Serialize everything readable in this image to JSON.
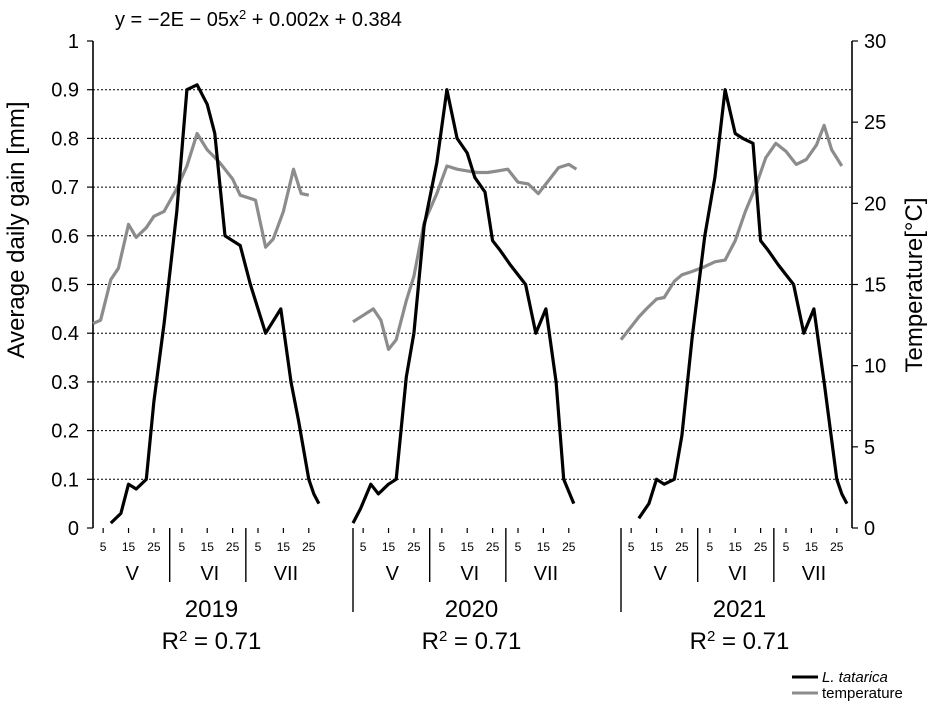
{
  "chart_data": {
    "type": "line",
    "equation": "y = −2E − 05x",
    "equation_exp": "2",
    "equation_rest": " + 0.002x + 0.384",
    "ylabel_left": "Average daily gain [mm]",
    "ylabel_right": "Temperature[°C]",
    "ylim_left": [
      0,
      1
    ],
    "ylim_right": [
      0,
      30
    ],
    "yticks_left": [
      "0",
      "0.1",
      "0.2",
      "0.3",
      "0.4",
      "0.5",
      "0.6",
      "0.7",
      "0.8",
      "0.9",
      "1"
    ],
    "yticks_right": [
      "0",
      "5",
      "10",
      "15",
      "20",
      "25",
      "30"
    ],
    "grid": "horizontal dotted",
    "day_ticks": [
      "5",
      "15",
      "25"
    ],
    "months": [
      "V",
      "VI",
      "VII"
    ],
    "x_unit": "day index from 1 May (May 1 = 1 … Jul 31 = 92)",
    "years": [
      {
        "year": "2019",
        "r2_base": "R",
        "r2_exp": "2",
        "r2_rest": " = 0.71",
        "gain": {
          "x": [
            8,
            12,
            15,
            18,
            22,
            25,
            29,
            34,
            38,
            42,
            46,
            49,
            53,
            56,
            59,
            63,
            69,
            75,
            79,
            82,
            86,
            88,
            90
          ],
          "y": [
            0.01,
            0.03,
            0.09,
            0.08,
            0.1,
            0.26,
            0.42,
            0.65,
            0.9,
            0.91,
            0.87,
            0.81,
            0.6,
            0.59,
            0.58,
            0.5,
            0.4,
            0.45,
            0.3,
            0.22,
            0.1,
            0.07,
            0.05
          ]
        },
        "temperature": {
          "x": [
            1,
            4,
            8,
            11,
            15,
            18,
            22,
            25,
            29,
            34,
            38,
            42,
            46,
            51,
            56,
            59,
            65,
            69,
            72,
            76,
            80,
            83,
            86
          ],
          "y": [
            12.6,
            12.8,
            15.3,
            16.0,
            18.7,
            17.9,
            18.5,
            19.2,
            19.5,
            20.9,
            22.3,
            24.3,
            23.3,
            22.5,
            21.5,
            20.5,
            20.2,
            17.3,
            17.8,
            19.5,
            22.1,
            20.6,
            20.5
          ]
        }
      },
      {
        "year": "2020",
        "r2_base": "R",
        "r2_exp": "2",
        "r2_rest": " = 0.71",
        "gain": {
          "x": [
            1,
            4,
            8,
            11,
            15,
            18,
            22,
            25,
            29,
            34,
            38,
            42,
            46,
            49,
            53,
            56,
            59,
            63,
            69,
            73,
            77,
            81,
            84,
            88
          ],
          "y": [
            0.01,
            0.04,
            0.09,
            0.07,
            0.09,
            0.1,
            0.31,
            0.4,
            0.62,
            0.75,
            0.9,
            0.8,
            0.77,
            0.72,
            0.69,
            0.59,
            0.57,
            0.54,
            0.5,
            0.4,
            0.45,
            0.3,
            0.1,
            0.05
          ]
        },
        "temperature": {
          "x": [
            1,
            5,
            9,
            12,
            15,
            18,
            22,
            25,
            29,
            34,
            38,
            42,
            46,
            50,
            54,
            58,
            62,
            66,
            70,
            74,
            78,
            82,
            86,
            89
          ],
          "y": [
            12.7,
            13.1,
            13.5,
            12.8,
            11.0,
            11.6,
            14.0,
            15.5,
            18.8,
            20.6,
            22.3,
            22.1,
            22.0,
            21.9,
            21.9,
            22.0,
            22.1,
            21.3,
            21.2,
            20.6,
            21.4,
            22.2,
            22.4,
            22.1
          ]
        }
      },
      {
        "year": "2021",
        "r2_base": "R",
        "r2_exp": "2",
        "r2_rest": " = 0.71",
        "gain": {
          "x": [
            8,
            12,
            15,
            18,
            22,
            25,
            29,
            34,
            38,
            42,
            46,
            49,
            53,
            56,
            59,
            63,
            69,
            73,
            77,
            81,
            86,
            88,
            90
          ],
          "y": [
            0.02,
            0.05,
            0.1,
            0.09,
            0.1,
            0.19,
            0.39,
            0.6,
            0.72,
            0.9,
            0.81,
            0.8,
            0.79,
            0.59,
            0.57,
            0.54,
            0.5,
            0.4,
            0.45,
            0.3,
            0.1,
            0.07,
            0.05
          ]
        },
        "temperature": {
          "x": [
            1,
            4,
            8,
            11,
            15,
            18,
            22,
            25,
            29,
            34,
            38,
            42,
            46,
            50,
            54,
            58,
            62,
            66,
            70,
            74,
            78,
            81,
            84,
            88
          ],
          "y": [
            11.6,
            12.2,
            13.0,
            13.5,
            14.1,
            14.2,
            15.2,
            15.6,
            15.8,
            16.1,
            16.4,
            16.5,
            17.7,
            19.5,
            21.0,
            22.8,
            23.7,
            23.2,
            22.4,
            22.7,
            23.6,
            24.8,
            23.3,
            22.3
          ]
        }
      }
    ],
    "series": [
      {
        "name": "L. tatarica",
        "color": "#000000",
        "axis": "left"
      },
      {
        "name": "temperature",
        "color": "#8c8c8c",
        "axis": "right"
      }
    ],
    "legend_position": "bottom-right"
  }
}
